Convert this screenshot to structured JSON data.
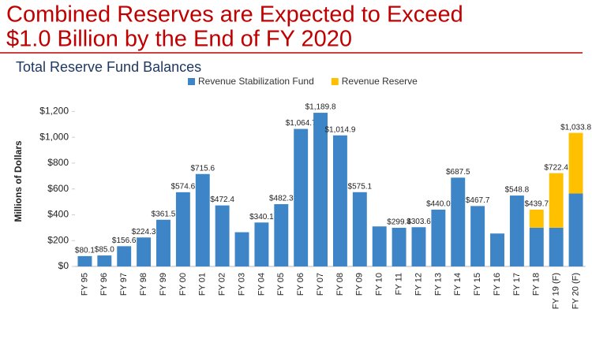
{
  "chart_data": {
    "type": "bar",
    "stacked": true,
    "title": "Combined Reserves are Expected to Exceed",
    "title_line2": "$1.0 Billion by the End of FY 2020",
    "subtitle": "Total Reserve Fund Balances",
    "y_label": "Millions of Dollars",
    "categories": [
      "FY 95",
      "FY 96",
      "FY 97",
      "FY 98",
      "FY 99",
      "FY 00",
      "FY 01",
      "FY 02",
      "FY 03",
      "FY 04",
      "FY 05",
      "FY 06",
      "FY 07",
      "FY 08",
      "FY 09",
      "FY 10",
      "FY 11",
      "FY 12",
      "FY 13",
      "FY 14",
      "FY 15",
      "FY 16",
      "FY 17",
      "FY 18",
      "FY 19 (F)",
      "FY 20 (F)"
    ],
    "series": [
      {
        "name": "Revenue Stabilization Fund",
        "color": "#3d85c6",
        "values": [
          80.1,
          85.0,
          156.6,
          224.3,
          361.5,
          574.6,
          715.6,
          472.4,
          265,
          340.1,
          482.3,
          1064.7,
          1189.8,
          1014.9,
          575.1,
          310,
          299.4,
          303.6,
          440.0,
          687.5,
          467.7,
          255,
          548.8,
          300,
          300,
          565
        ]
      },
      {
        "name": "Revenue Reserve",
        "color": "#ffc000",
        "values": [
          null,
          null,
          null,
          null,
          null,
          null,
          null,
          null,
          null,
          null,
          null,
          null,
          null,
          null,
          null,
          null,
          null,
          null,
          null,
          null,
          null,
          null,
          null,
          139.7,
          422.4,
          468.8
        ]
      }
    ],
    "total_labels": [
      "$80.1",
      "$85.0",
      "$156.6",
      "$224.3",
      "$361.5",
      "$574.6",
      "$715.6",
      "$472.4",
      null,
      "$340.1",
      "$482.3",
      "$1,064.7",
      "$1,189.8",
      "$1,014.9",
      "$575.1",
      null,
      "$299.4",
      "$303.6",
      "$440.0",
      "$687.5",
      "$467.7",
      null,
      "$548.8",
      "$439.7",
      "$722.4",
      "$1,033.8"
    ],
    "ylim": [
      0,
      1300
    ],
    "yticks": [
      {
        "value": 0,
        "label": "$0"
      },
      {
        "value": 200,
        "label": "$200"
      },
      {
        "value": 400,
        "label": "$400"
      },
      {
        "value": 600,
        "label": "$600"
      },
      {
        "value": 800,
        "label": "$800"
      },
      {
        "value": 1000,
        "label": "$1,000"
      },
      {
        "value": 1200,
        "label": "$1,200"
      }
    ],
    "grid": false,
    "legend": "top"
  }
}
